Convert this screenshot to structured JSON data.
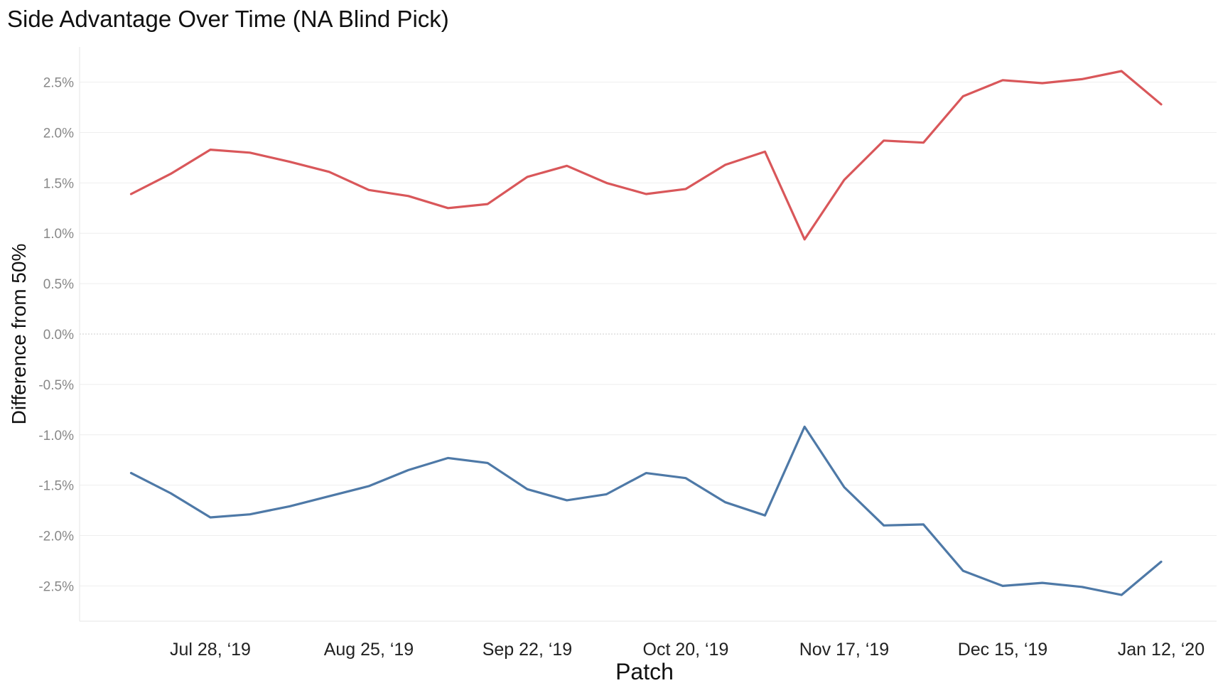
{
  "chart_data": {
    "type": "line",
    "title": "Side Advantage Over Time (NA Blind Pick)",
    "xlabel": "Patch",
    "ylabel": "Difference from 50%",
    "x_tick_labels": [
      "Jul 28, ‘19",
      "Aug 25, ‘19",
      "Sep 22, ‘19",
      "Oct 20, ‘19",
      "Nov 17, ‘19",
      "Dec 15, ‘19",
      "Jan 12, ‘20"
    ],
    "x_tick_indices": [
      2,
      6,
      10,
      14,
      18,
      22,
      26
    ],
    "y_ticks": [
      2.5,
      2.0,
      1.5,
      1.0,
      0.5,
      0.0,
      -0.5,
      -1.0,
      -1.5,
      -2.0,
      -2.5
    ],
    "y_tick_labels": [
      "2.5%",
      "2.0%",
      "1.5%",
      "1.0%",
      "0.5%",
      "0.0%",
      "-0.5%",
      "-1.0%",
      "-1.5%",
      "-2.0%",
      "-2.5%"
    ],
    "ylim": [
      -2.85,
      2.85
    ],
    "xlim": [
      -1.3,
      27.4
    ],
    "grid": true,
    "colors": {
      "red_series": "#d9575a",
      "blue_series": "#4e79a7",
      "grid": "#eeeeee",
      "zero_line": "#cccccc"
    },
    "series": [
      {
        "values": [
          1.39,
          1.59,
          1.83,
          1.8,
          1.71,
          1.61,
          1.43,
          1.37,
          1.25,
          1.29,
          1.56,
          1.67,
          1.5,
          1.39,
          1.44,
          1.68,
          1.81,
          0.94,
          1.53,
          1.92,
          1.9,
          2.36,
          2.52,
          2.49,
          2.53,
          2.61,
          2.28
        ]
      },
      {
        "values": [
          -1.38,
          -1.58,
          -1.82,
          -1.79,
          -1.71,
          -1.61,
          -1.51,
          -1.35,
          -1.23,
          -1.28,
          -1.54,
          -1.65,
          -1.59,
          -1.38,
          -1.43,
          -1.67,
          -1.8,
          -0.92,
          -1.52,
          -1.9,
          -1.89,
          -2.35,
          -2.5,
          -2.47,
          -2.51,
          -2.59,
          -2.26
        ]
      }
    ]
  }
}
